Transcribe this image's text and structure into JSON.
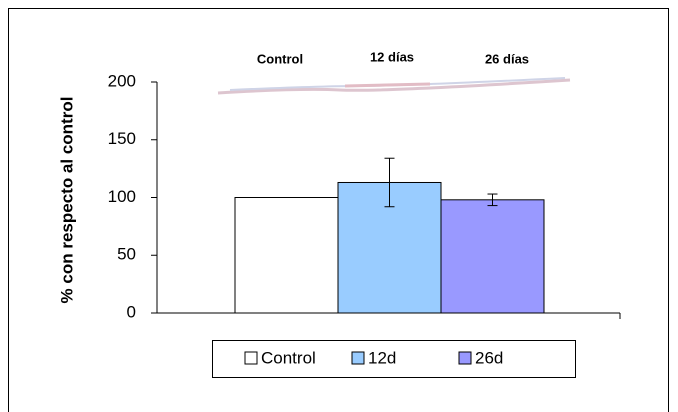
{
  "chart_data": {
    "type": "bar",
    "y_label": "% con respecto al control",
    "blot_labels": [
      "Control",
      "12 días",
      "26 días"
    ],
    "categories": [
      null
    ],
    "series": [
      {
        "name": "Control",
        "color": "#ffffff",
        "values": [
          100
        ],
        "errors": [
          null
        ]
      },
      {
        "name": "12d",
        "color": "#99ccff",
        "values": [
          113
        ],
        "errors": [
          21
        ]
      },
      {
        "name": "26d",
        "color": "#9999ff",
        "values": [
          98
        ],
        "errors": [
          5
        ]
      }
    ],
    "ylim": [
      0,
      200
    ],
    "yticks": [
      0,
      50,
      100,
      150,
      200
    ],
    "legend": "bottom"
  }
}
